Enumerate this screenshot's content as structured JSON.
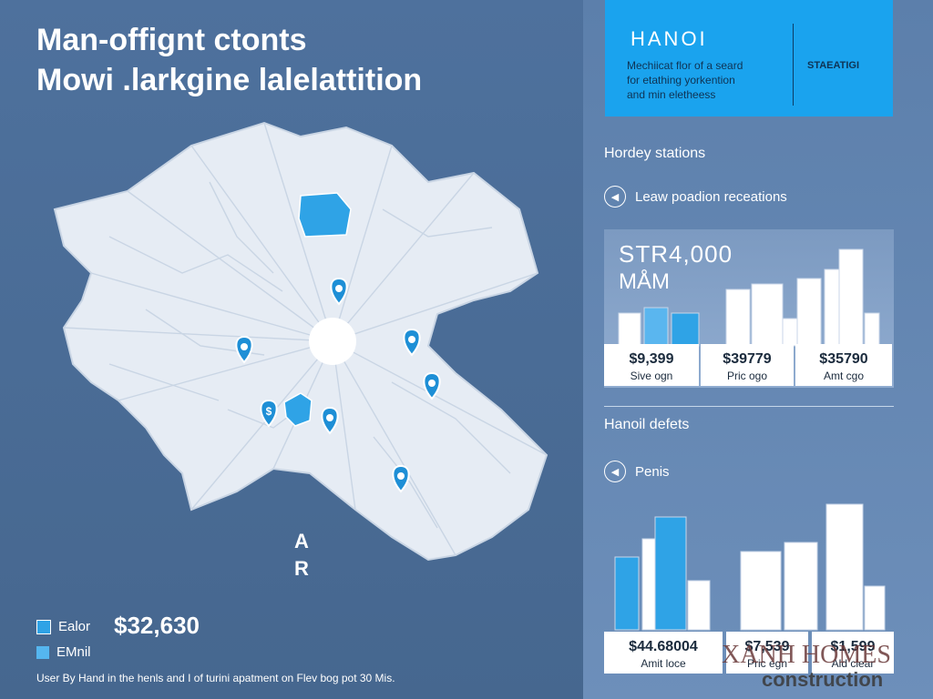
{
  "title": {
    "line1": "Man-offignt ctonts",
    "line2": "Mowi  .larkgine lalelattition"
  },
  "map": {
    "compass_a": "A",
    "compass_r": "R",
    "pin_dollar": "$"
  },
  "legend": [
    {
      "label": "Ealor"
    },
    {
      "label": "EMnil"
    }
  ],
  "price_main": "$32,630",
  "footer": "User By Hand in the henls and I of turini apatment on Flev bog pot 30 Mis.",
  "hanoi": {
    "title": "HANOI",
    "desc": [
      "Mechiicat flor of a seard",
      "for etathing yorkention",
      "and min eletheess"
    ],
    "right_label": "STAEATIGI"
  },
  "sections": {
    "stations_title": "Hordey stations",
    "stations_item": "Leaw poadion receations",
    "defects_title": "Hanoil defets",
    "defects_item": "Penis"
  },
  "card1": {
    "headline": "STR4,000",
    "sub": "MÅM",
    "prices": [
      {
        "value": "$9,399",
        "label": "Sive ogn"
      },
      {
        "value": "$39779",
        "label": "Pric ogo"
      },
      {
        "value": "$35790",
        "label": "Amt cgo"
      }
    ]
  },
  "card2": {
    "prices": [
      {
        "value": "$44.68004",
        "label": "Amit loce"
      },
      {
        "value": "$7,539",
        "label": "Pric egn"
      },
      {
        "value": "$1,599",
        "label": "Ald clear"
      }
    ]
  },
  "watermark": {
    "line1": "XANH HOMES",
    "line2": "construction"
  },
  "colors": {
    "accent": "#1aa3ee",
    "map_land": "#e9eef5",
    "background": "#4a6d9a"
  }
}
